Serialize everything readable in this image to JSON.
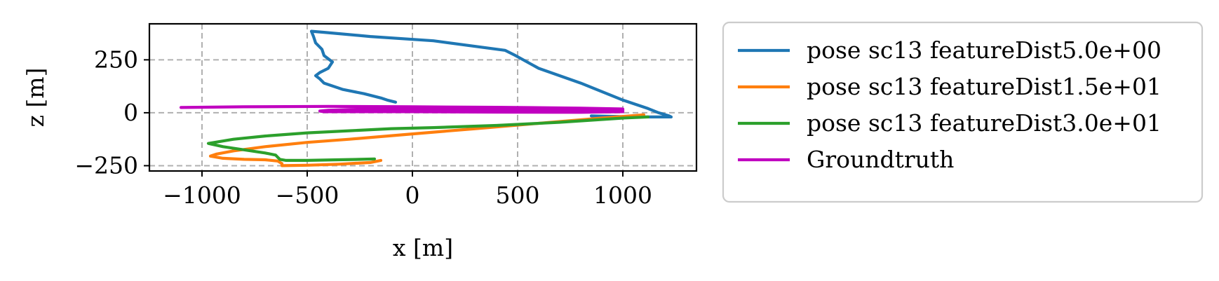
{
  "chart_data": {
    "type": "line",
    "title": "",
    "xlabel": "x [m]",
    "ylabel": "z [m]",
    "xlim": [
      -1250,
      1350
    ],
    "ylim": [
      -275,
      420
    ],
    "xticks": [
      -1000,
      -500,
      0,
      500,
      1000
    ],
    "xtick_labels": [
      "−1000",
      "−500",
      "0",
      "500",
      "1000"
    ],
    "yticks": [
      -250,
      0,
      250
    ],
    "ytick_labels": [
      "−250",
      "0",
      "250"
    ],
    "grid": true,
    "legend_position": "outside-right",
    "series": [
      {
        "name": "pose sc13 featureDist5.0e+00",
        "color": "#1f77b4",
        "x": [
          -80,
          -120,
          -150,
          -230,
          -330,
          -420,
          -440,
          -460,
          -440,
          -400,
          -380,
          -420,
          -430,
          -460,
          -470,
          -480,
          -420,
          -200,
          100,
          440,
          490,
          600,
          800,
          1000,
          1120,
          1170,
          1220,
          1230,
          1080,
          850
        ],
        "z": [
          50,
          60,
          70,
          90,
          110,
          140,
          160,
          175,
          190,
          210,
          240,
          270,
          300,
          330,
          360,
          385,
          380,
          360,
          340,
          295,
          270,
          210,
          140,
          60,
          20,
          0,
          -15,
          -20,
          -20,
          -15
        ]
      },
      {
        "name": "pose sc13 featureDist1.5e+01",
        "color": "#ff7f0e",
        "x": [
          1100,
          900,
          600,
          300,
          0,
          -300,
          -500,
          -700,
          -850,
          -930,
          -960,
          -900,
          -800,
          -700,
          -640,
          -620,
          -620,
          -500,
          -350,
          -200,
          -150
        ],
        "z": [
          -10,
          -25,
          -50,
          -75,
          -100,
          -125,
          -140,
          -160,
          -180,
          -195,
          -205,
          -215,
          -220,
          -222,
          -228,
          -240,
          -250,
          -248,
          -243,
          -235,
          -225
        ]
      },
      {
        "name": "pose sc13 featureDist3.0e+01",
        "color": "#2ca02c",
        "x": [
          1120,
          1000,
          700,
          400,
          100,
          -100,
          -300,
          -500,
          -700,
          -850,
          -970,
          -900,
          -800,
          -700,
          -650,
          -640,
          -630,
          -600,
          -500,
          -350,
          -250,
          -180
        ],
        "z": [
          -20,
          -25,
          -45,
          -60,
          -70,
          -75,
          -85,
          -95,
          -110,
          -125,
          -145,
          -160,
          -175,
          -190,
          -200,
          -210,
          -220,
          -225,
          -225,
          -222,
          -220,
          -218
        ]
      },
      {
        "name": "Groundtruth",
        "color": "#c000c0",
        "x": [
          -1100,
          -800,
          -400,
          0,
          400,
          800,
          1000,
          1000,
          800,
          400,
          0,
          -300,
          -420,
          -440,
          -400,
          -300,
          -100,
          200,
          500,
          800,
          1000
        ],
        "z": [
          25,
          28,
          30,
          28,
          26,
          22,
          18,
          5,
          2,
          3,
          5,
          5,
          5,
          8,
          12,
          15,
          18,
          18,
          16,
          14,
          12
        ]
      }
    ]
  }
}
